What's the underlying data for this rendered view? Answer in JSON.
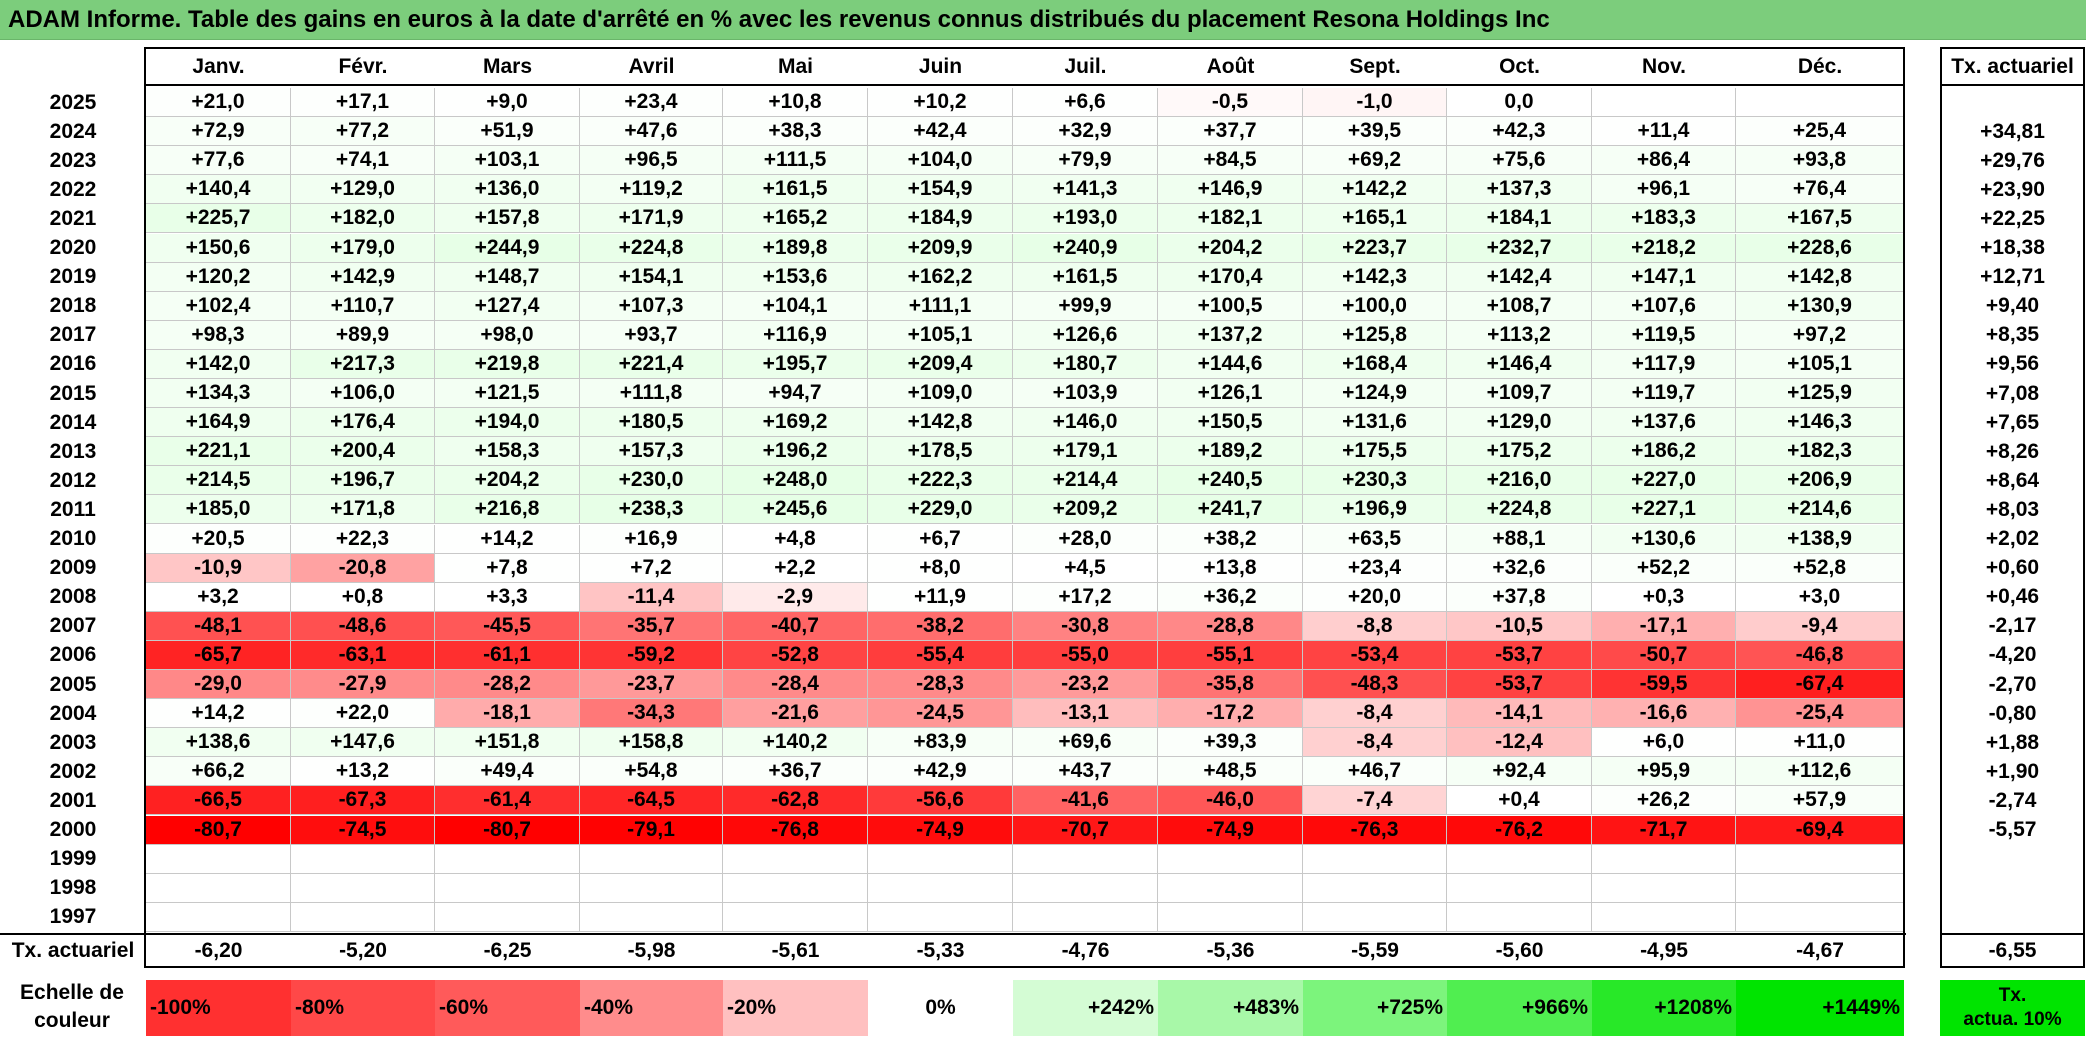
{
  "title": "ADAM Informe. Table des gains en euros à la date d'arrêté en % avec les revenus connus distribués du placement Resona Holdings Inc",
  "months": [
    "Janv.",
    "Févr.",
    "Mars",
    "Avril",
    "Mai",
    "Juin",
    "Juil.",
    "Août",
    "Sept.",
    "Oct.",
    "Nov.",
    "Déc."
  ],
  "rate_header": "Tx. actuariel",
  "rows": [
    {
      "year": "2025",
      "values": [
        "+21,0",
        "+17,1",
        "+9,0",
        "+23,4",
        "+10,8",
        "+10,2",
        "+6,6",
        "-0,5",
        "-1,0",
        "0,0",
        "",
        ""
      ],
      "rate": ""
    },
    {
      "year": "2024",
      "values": [
        "+72,9",
        "+77,2",
        "+51,9",
        "+47,6",
        "+38,3",
        "+42,4",
        "+32,9",
        "+37,7",
        "+39,5",
        "+42,3",
        "+11,4",
        "+25,4"
      ],
      "rate": "+34,81"
    },
    {
      "year": "2023",
      "values": [
        "+77,6",
        "+74,1",
        "+103,1",
        "+96,5",
        "+111,5",
        "+104,0",
        "+79,9",
        "+84,5",
        "+69,2",
        "+75,6",
        "+86,4",
        "+93,8"
      ],
      "rate": "+29,76"
    },
    {
      "year": "2022",
      "values": [
        "+140,4",
        "+129,0",
        "+136,0",
        "+119,2",
        "+161,5",
        "+154,9",
        "+141,3",
        "+146,9",
        "+142,2",
        "+137,3",
        "+96,1",
        "+76,4"
      ],
      "rate": "+23,90"
    },
    {
      "year": "2021",
      "values": [
        "+225,7",
        "+182,0",
        "+157,8",
        "+171,9",
        "+165,2",
        "+184,9",
        "+193,0",
        "+182,1",
        "+165,1",
        "+184,1",
        "+183,3",
        "+167,5"
      ],
      "rate": "+22,25"
    },
    {
      "year": "2020",
      "values": [
        "+150,6",
        "+179,0",
        "+244,9",
        "+224,8",
        "+189,8",
        "+209,9",
        "+240,9",
        "+204,2",
        "+223,7",
        "+232,7",
        "+218,2",
        "+228,6"
      ],
      "rate": "+18,38"
    },
    {
      "year": "2019",
      "values": [
        "+120,2",
        "+142,9",
        "+148,7",
        "+154,1",
        "+153,6",
        "+162,2",
        "+161,5",
        "+170,4",
        "+142,3",
        "+142,4",
        "+147,1",
        "+142,8"
      ],
      "rate": "+12,71"
    },
    {
      "year": "2018",
      "values": [
        "+102,4",
        "+110,7",
        "+127,4",
        "+107,3",
        "+104,1",
        "+111,1",
        "+99,9",
        "+100,5",
        "+100,0",
        "+108,7",
        "+107,6",
        "+130,9"
      ],
      "rate": "+9,40"
    },
    {
      "year": "2017",
      "values": [
        "+98,3",
        "+89,9",
        "+98,0",
        "+93,7",
        "+116,9",
        "+105,1",
        "+126,6",
        "+137,2",
        "+125,8",
        "+113,2",
        "+119,5",
        "+97,2"
      ],
      "rate": "+8,35"
    },
    {
      "year": "2016",
      "values": [
        "+142,0",
        "+217,3",
        "+219,8",
        "+221,4",
        "+195,7",
        "+209,4",
        "+180,7",
        "+144,6",
        "+168,4",
        "+146,4",
        "+117,9",
        "+105,1"
      ],
      "rate": "+9,56"
    },
    {
      "year": "2015",
      "values": [
        "+134,3",
        "+106,0",
        "+121,5",
        "+111,8",
        "+94,7",
        "+109,0",
        "+103,9",
        "+126,1",
        "+124,9",
        "+109,7",
        "+119,7",
        "+125,9"
      ],
      "rate": "+7,08"
    },
    {
      "year": "2014",
      "values": [
        "+164,9",
        "+176,4",
        "+194,0",
        "+180,5",
        "+169,2",
        "+142,8",
        "+146,0",
        "+150,5",
        "+131,6",
        "+129,0",
        "+137,6",
        "+146,3"
      ],
      "rate": "+7,65"
    },
    {
      "year": "2013",
      "values": [
        "+221,1",
        "+200,4",
        "+158,3",
        "+157,3",
        "+196,2",
        "+178,5",
        "+179,1",
        "+189,2",
        "+175,5",
        "+175,2",
        "+186,2",
        "+182,3"
      ],
      "rate": "+8,26"
    },
    {
      "year": "2012",
      "values": [
        "+214,5",
        "+196,7",
        "+204,2",
        "+230,0",
        "+248,0",
        "+222,3",
        "+214,4",
        "+240,5",
        "+230,3",
        "+216,0",
        "+227,0",
        "+206,9"
      ],
      "rate": "+8,64"
    },
    {
      "year": "2011",
      "values": [
        "+185,0",
        "+171,8",
        "+216,8",
        "+238,3",
        "+245,6",
        "+229,0",
        "+209,2",
        "+241,7",
        "+196,9",
        "+224,8",
        "+227,1",
        "+214,6"
      ],
      "rate": "+8,03"
    },
    {
      "year": "2010",
      "values": [
        "+20,5",
        "+22,3",
        "+14,2",
        "+16,9",
        "+4,8",
        "+6,7",
        "+28,0",
        "+38,2",
        "+63,5",
        "+88,1",
        "+130,6",
        "+138,9"
      ],
      "rate": "+2,02"
    },
    {
      "year": "2009",
      "values": [
        "-10,9",
        "-20,8",
        "+7,8",
        "+7,2",
        "+2,2",
        "+8,0",
        "+4,5",
        "+13,8",
        "+23,4",
        "+32,6",
        "+52,2",
        "+52,8"
      ],
      "rate": "+0,60"
    },
    {
      "year": "2008",
      "values": [
        "+3,2",
        "+0,8",
        "+3,3",
        "-11,4",
        "-2,9",
        "+11,9",
        "+17,2",
        "+36,2",
        "+20,0",
        "+37,8",
        "+0,3",
        "+3,0"
      ],
      "rate": "+0,46"
    },
    {
      "year": "2007",
      "values": [
        "-48,1",
        "-48,6",
        "-45,5",
        "-35,7",
        "-40,7",
        "-38,2",
        "-30,8",
        "-28,8",
        "-8,8",
        "-10,5",
        "-17,1",
        "-9,4"
      ],
      "rate": "-2,17"
    },
    {
      "year": "2006",
      "values": [
        "-65,7",
        "-63,1",
        "-61,1",
        "-59,2",
        "-52,8",
        "-55,4",
        "-55,0",
        "-55,1",
        "-53,4",
        "-53,7",
        "-50,7",
        "-46,8"
      ],
      "rate": "-4,20"
    },
    {
      "year": "2005",
      "values": [
        "-29,0",
        "-27,9",
        "-28,2",
        "-23,7",
        "-28,4",
        "-28,3",
        "-23,2",
        "-35,8",
        "-48,3",
        "-53,7",
        "-59,5",
        "-67,4"
      ],
      "rate": "-2,70"
    },
    {
      "year": "2004",
      "values": [
        "+14,2",
        "+22,0",
        "-18,1",
        "-34,3",
        "-21,6",
        "-24,5",
        "-13,1",
        "-17,2",
        "-8,4",
        "-14,1",
        "-16,6",
        "-25,4"
      ],
      "rate": "-0,80"
    },
    {
      "year": "2003",
      "values": [
        "+138,6",
        "+147,6",
        "+151,8",
        "+158,8",
        "+140,2",
        "+83,9",
        "+69,6",
        "+39,3",
        "-8,4",
        "-12,4",
        "+6,0",
        "+11,0"
      ],
      "rate": "+1,88"
    },
    {
      "year": "2002",
      "values": [
        "+66,2",
        "+13,2",
        "+49,4",
        "+54,8",
        "+36,7",
        "+42,9",
        "+43,7",
        "+48,5",
        "+46,7",
        "+92,4",
        "+95,9",
        "+112,6"
      ],
      "rate": "+1,90"
    },
    {
      "year": "2001",
      "values": [
        "-66,5",
        "-67,3",
        "-61,4",
        "-64,5",
        "-62,8",
        "-56,6",
        "-41,6",
        "-46,0",
        "-7,4",
        "+0,4",
        "+26,2",
        "+57,9"
      ],
      "rate": "-2,74"
    },
    {
      "year": "2000",
      "values": [
        "-80,7",
        "-74,5",
        "-80,7",
        "-79,1",
        "-76,8",
        "-74,9",
        "-70,7",
        "-74,9",
        "-76,3",
        "-76,2",
        "-71,7",
        "-69,4"
      ],
      "rate": "-5,57"
    },
    {
      "year": "1999",
      "values": [
        "",
        "",
        "",
        "",
        "",
        "",
        "",
        "",
        "",
        "",
        "",
        ""
      ],
      "rate": ""
    },
    {
      "year": "1998",
      "values": [
        "",
        "",
        "",
        "",
        "",
        "",
        "",
        "",
        "",
        "",
        "",
        ""
      ],
      "rate": ""
    },
    {
      "year": "1997",
      "values": [
        "",
        "",
        "",
        "",
        "",
        "",
        "",
        "",
        "",
        "",
        "",
        ""
      ],
      "rate": ""
    }
  ],
  "footer": {
    "label": "Tx. actuariel",
    "values": [
      "-6,20",
      "-5,20",
      "-6,25",
      "-5,98",
      "-5,61",
      "-5,33",
      "-4,76",
      "-5,36",
      "-5,59",
      "-5,60",
      "-4,95",
      "-4,67"
    ],
    "total": "-6,55"
  },
  "legend": {
    "label_line1": "Echelle de",
    "label_line2": "couleur",
    "cells": [
      {
        "label": "-100%",
        "color": "#ff3030",
        "align": "left"
      },
      {
        "label": "-80%",
        "color": "#ff4848",
        "align": "left"
      },
      {
        "label": "-60%",
        "color": "#ff5a5a",
        "align": "left"
      },
      {
        "label": "-40%",
        "color": "#ff8c8c",
        "align": "left"
      },
      {
        "label": "-20%",
        "color": "#ffc0c0",
        "align": "left"
      },
      {
        "label": "0%",
        "color": "#ffffff",
        "align": "center"
      },
      {
        "label": "+242%",
        "color": "#d4fcd4",
        "align": "right"
      },
      {
        "label": "+483%",
        "color": "#a8f8a8",
        "align": "right"
      },
      {
        "label": "+725%",
        "color": "#7cf47c",
        "align": "right"
      },
      {
        "label": "+966%",
        "color": "#50ee50",
        "align": "right"
      },
      {
        "label": "+1208%",
        "color": "#28e828",
        "align": "right"
      },
      {
        "label": "+1449%",
        "color": "#00e400",
        "align": "right"
      }
    ],
    "right_line1": "Tx.",
    "right_line2": "actua. 10%",
    "right_color": "#00e400"
  }
}
